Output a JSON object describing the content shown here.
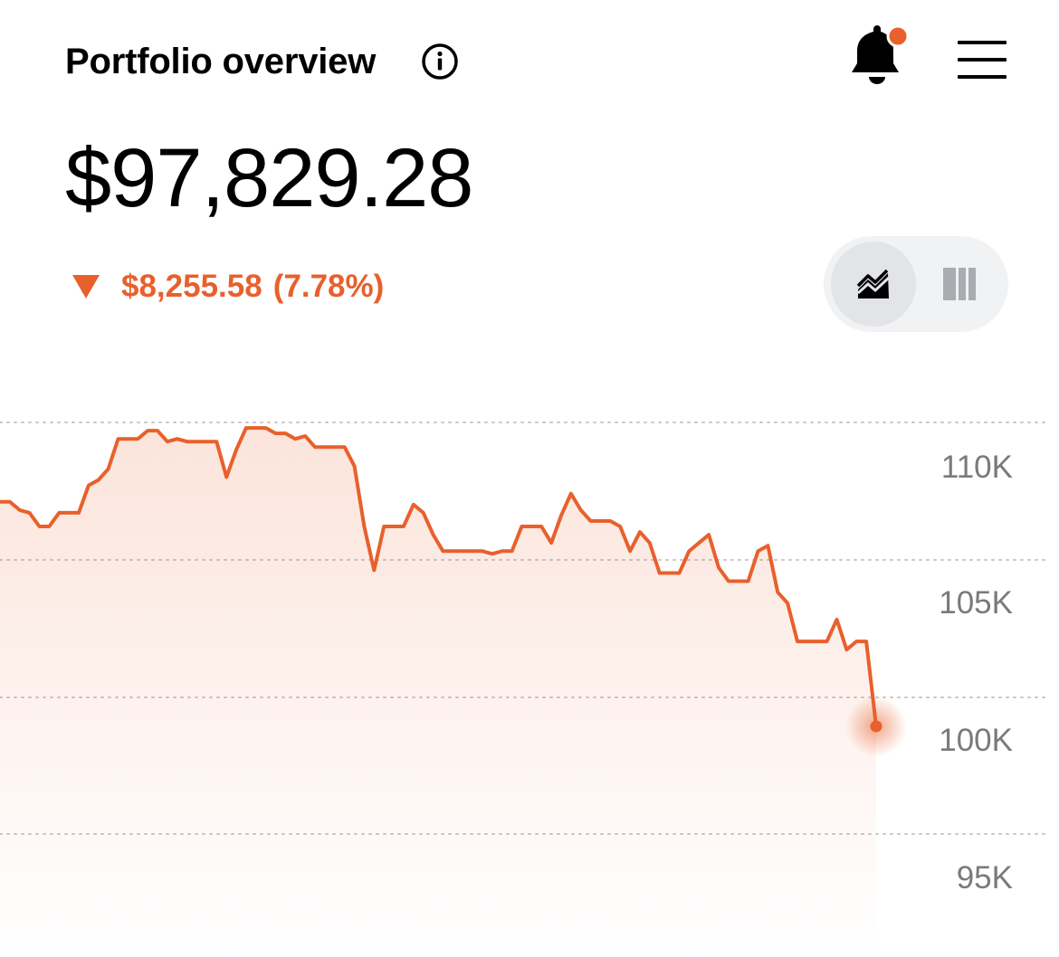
{
  "header": {
    "title": "Portfolio overview",
    "info_icon": "info-circle-icon",
    "bell_icon": "bell-icon",
    "menu_icon": "hamburger-menu-icon",
    "notification_dot_color": "#e8602c"
  },
  "portfolio": {
    "balance": "$97,829.28",
    "change_direction": "down",
    "change_amount": "$8,255.58",
    "change_percent": "(7.78%)"
  },
  "view_toggle": {
    "options": [
      {
        "icon": "line-chart-icon",
        "selected": true
      },
      {
        "icon": "bar-chart-icon",
        "selected": false
      }
    ]
  },
  "colors": {
    "accent": "#e8602c",
    "text": "#000000",
    "axis_text": "#7a7a7a",
    "grid": "#c8c8c8"
  },
  "chart_data": {
    "type": "area",
    "ylim": [
      93000,
      112000
    ],
    "yticks": [
      110000,
      105000,
      100000,
      95000
    ],
    "ytick_labels": [
      "110K",
      "105K",
      "100K",
      "95K"
    ],
    "grid": true,
    "grid_style": "dotted",
    "last_point_marker": true,
    "series": [
      {
        "values": [
          107100,
          107100,
          106800,
          106700,
          106200,
          106200,
          106700,
          106700,
          106700,
          107700,
          107900,
          108300,
          109400,
          109400,
          109400,
          109700,
          109700,
          109300,
          109400,
          109300,
          109300,
          109300,
          109300,
          108000,
          109000,
          109800,
          109800,
          109800,
          109600,
          109600,
          109400,
          109500,
          109100,
          109100,
          109100,
          109100,
          108400,
          106200,
          104600,
          106200,
          106200,
          106200,
          107000,
          106700,
          105900,
          105300,
          105300,
          105300,
          105300,
          105300,
          105200,
          105300,
          105300,
          106200,
          106200,
          106200,
          105600,
          106600,
          107400,
          106800,
          106400,
          106400,
          106400,
          106200,
          105300,
          106000,
          105600,
          104500,
          104500,
          104500,
          105300,
          105600,
          105900,
          104700,
          104200,
          104200,
          104200,
          105300,
          105500,
          103800,
          103400,
          102000,
          102000,
          102000,
          102000,
          102800,
          101700,
          102000,
          102000,
          98900
        ]
      }
    ]
  }
}
